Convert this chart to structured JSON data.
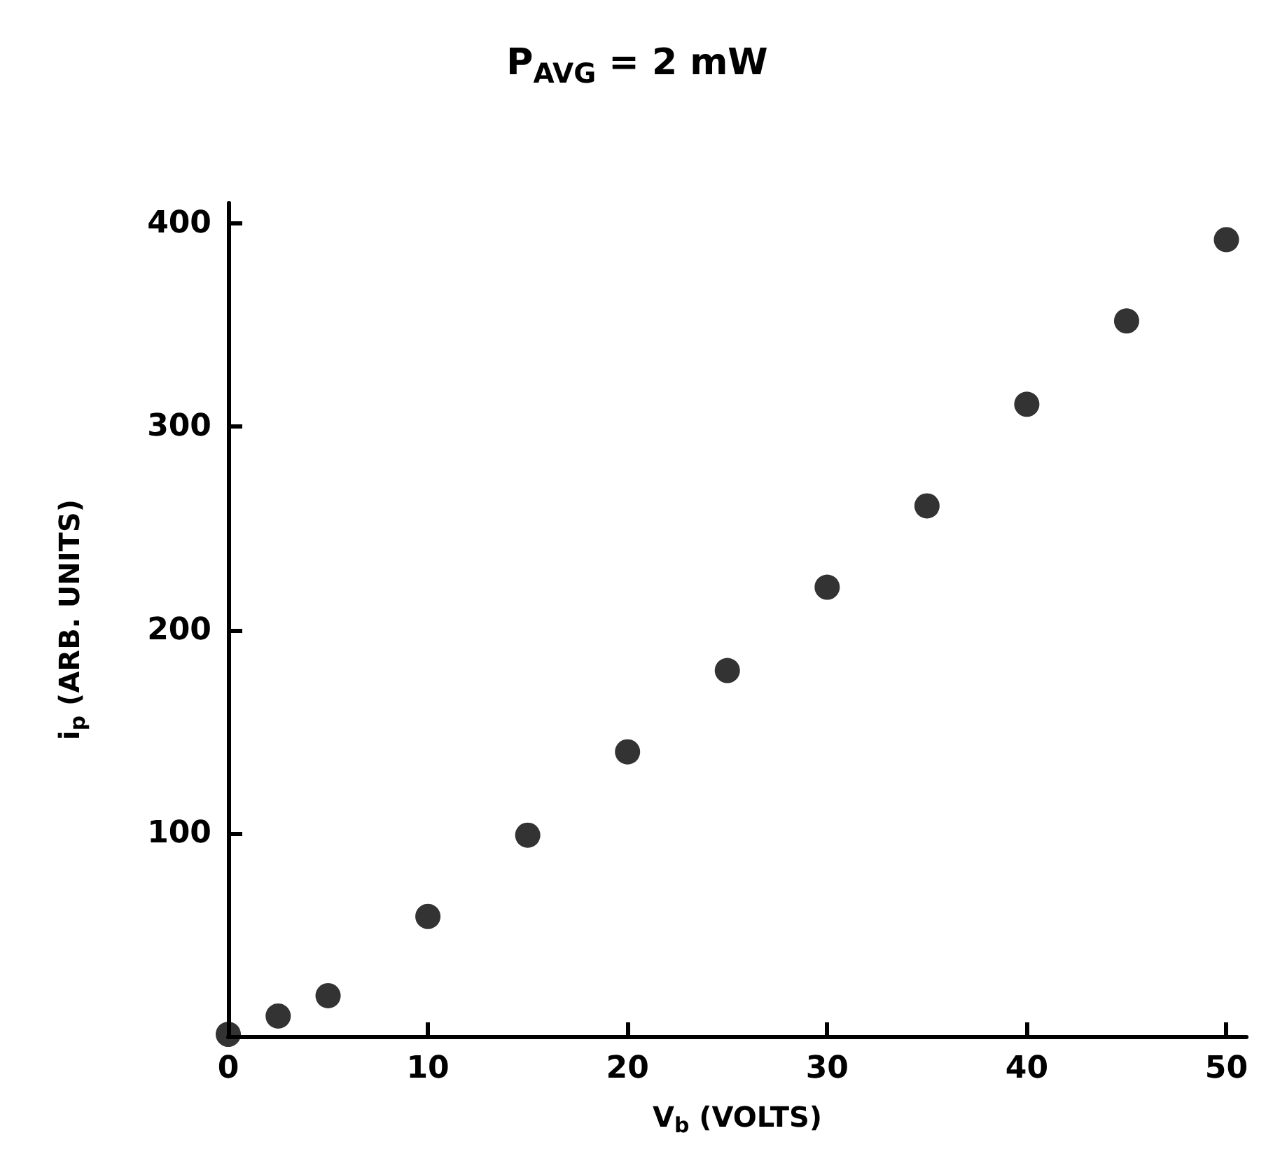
{
  "chart_data": {
    "type": "scatter",
    "title": "P$_{AVG}$ = 2 mW",
    "xlabel": "V$_{b}$ (VOLTS)",
    "ylabel": "i$_{p}$ (ARB. UNITS)",
    "x": [
      0,
      2.5,
      5,
      10,
      15,
      20,
      25,
      30,
      35,
      40,
      45,
      50
    ],
    "series": [
      {
        "color": "#000000",
        "values": [
          1,
          10,
          20,
          59,
          99,
          140,
          180,
          221,
          261,
          311,
          352,
          392
        ]
      }
    ],
    "xlim": [
      0,
      51
    ],
    "xticks": [
      0,
      10,
      20,
      30,
      40,
      50
    ],
    "ylim": [
      0,
      410
    ],
    "yticks": [
      100,
      200,
      300,
      400
    ],
    "grid": false,
    "marker": "circle"
  }
}
